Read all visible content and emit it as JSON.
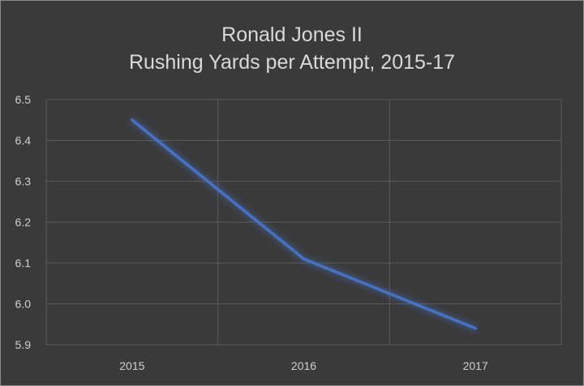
{
  "chart_data": {
    "type": "line",
    "title": "Ronald Jones II",
    "subtitle": "Rushing Yards per Attempt, 2015-17",
    "xlabel": "",
    "ylabel": "",
    "categories": [
      "2015",
      "2016",
      "2017"
    ],
    "series": [
      {
        "values": [
          6.45,
          6.11,
          5.94
        ],
        "color": "#4472c4"
      }
    ],
    "ylim": [
      5.9,
      6.5
    ],
    "yticks": [
      "6.5",
      "6.4",
      "6.3",
      "6.2",
      "6.1",
      "6.0",
      "5.9"
    ],
    "grid": true,
    "background_color": "#3a3a3a",
    "grid_color": "#5a5a5a"
  }
}
